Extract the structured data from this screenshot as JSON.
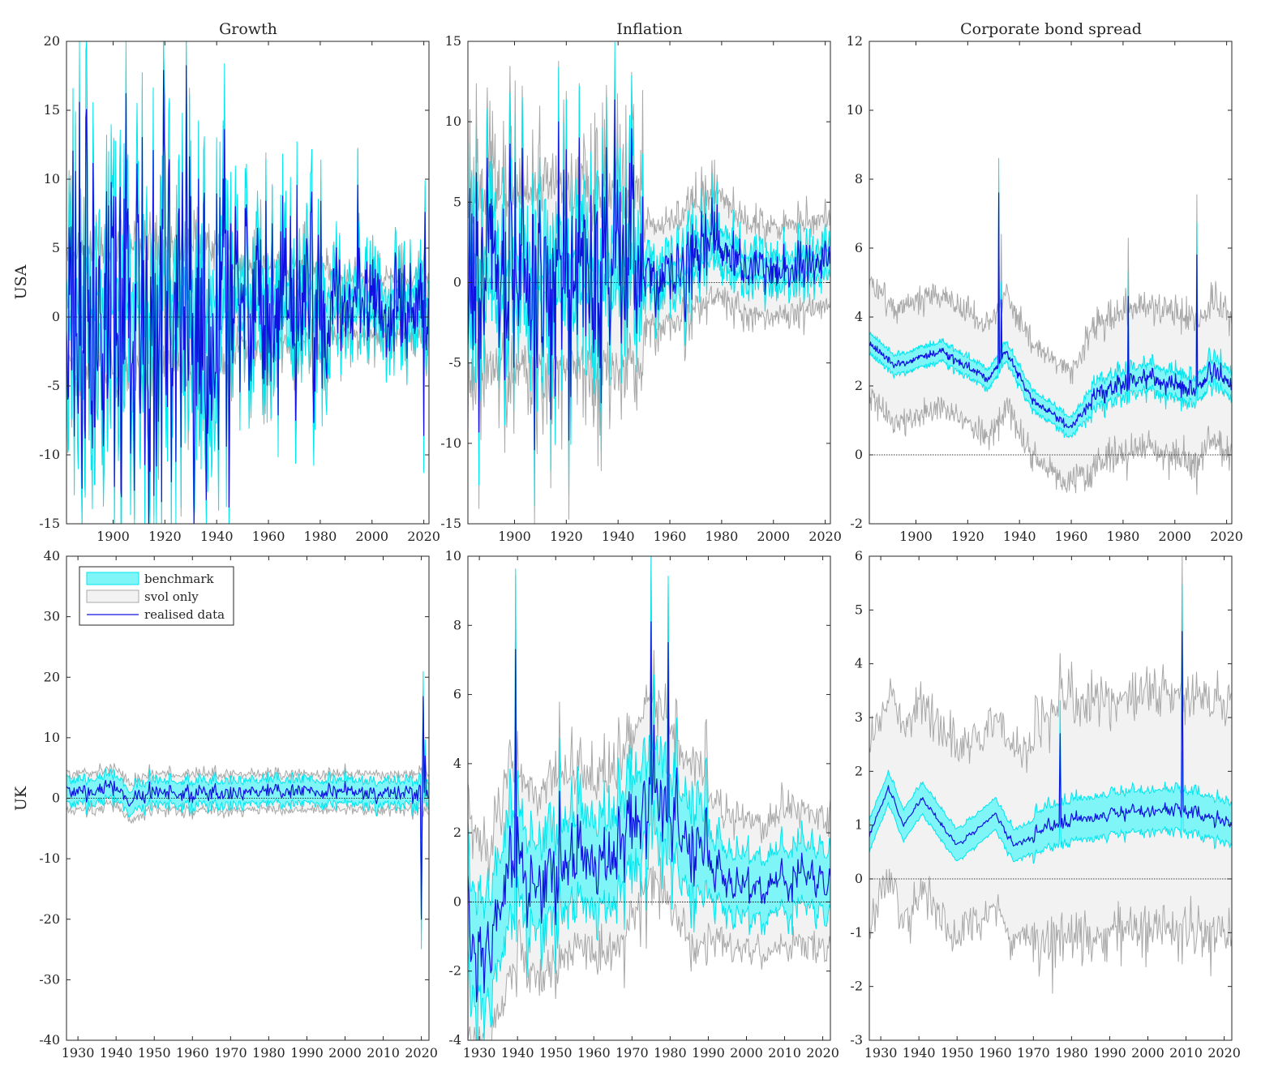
{
  "figure": {
    "column_titles": [
      "Growth",
      "Inflation",
      "Corporate bond spread"
    ],
    "row_labels": [
      "USA",
      "UK"
    ],
    "legend": {
      "items": [
        {
          "label": "benchmark",
          "kind": "band",
          "fill": "#7ff5f7",
          "stroke": "#00e5ee"
        },
        {
          "label": "svol only",
          "kind": "band",
          "fill": "#f2f2f2",
          "stroke": "#a8a8a8"
        },
        {
          "label": "realised data",
          "kind": "line",
          "stroke": "#1010e0"
        }
      ]
    },
    "colors": {
      "benchmark_fill": "#7ff5f7",
      "benchmark_edge": "#00e5ee",
      "svol_fill": "#f2f2f2",
      "svol_edge": "#a8a8a8",
      "realised": "#1010e0",
      "zero_line": "#000000",
      "axes": "#262626"
    }
  },
  "chart_data": [
    {
      "id": "usa-growth",
      "type": "line",
      "row": "USA",
      "title": "Growth",
      "xlim": [
        1882,
        2022
      ],
      "ylim": [
        -15,
        20
      ],
      "xticks": [
        1900,
        1920,
        1940,
        1960,
        1980,
        2000,
        2020
      ],
      "yticks": [
        -15,
        -10,
        -5,
        0,
        5,
        10,
        15,
        20
      ],
      "zero_line": true,
      "legend": false,
      "sim": {
        "start": 1882,
        "end": 2022,
        "step": 0.25,
        "mean": 0.8,
        "noise": 2.8,
        "spikes": [
          [
            1892,
            -9.5
          ],
          [
            1907,
            -6
          ],
          [
            1919,
            7.8
          ],
          [
            1921,
            -6.5
          ],
          [
            1931,
            -7.5
          ],
          [
            1933,
            10
          ],
          [
            1934,
            -7
          ],
          [
            1938,
            -7.5
          ],
          [
            1945,
            -7.5
          ],
          [
            2020,
            -8.6
          ],
          [
            2020.5,
            7.6
          ]
        ],
        "regimes": [
          [
            1882,
            1946,
            3.0
          ],
          [
            1946,
            1984,
            1.6
          ],
          [
            1984,
            2022,
            0.8
          ]
        ],
        "bench_w": 1.2,
        "svol_w": 1.7,
        "seed": 11
      }
    },
    {
      "id": "usa-inflation",
      "type": "line",
      "row": "USA",
      "title": "Inflation",
      "xlim": [
        1882,
        2022
      ],
      "ylim": [
        -15,
        15
      ],
      "xticks": [
        1900,
        1920,
        1940,
        1960,
        1980,
        2000,
        2020
      ],
      "yticks": [
        -15,
        -10,
        -5,
        0,
        5,
        10,
        15
      ],
      "zero_line": true,
      "legend": false,
      "sim": {
        "start": 1882,
        "end": 2022,
        "step": 0.25,
        "mean": 0.0,
        "noise": 2.0,
        "spikes": [
          [
            1917,
            10
          ],
          [
            1919,
            7
          ],
          [
            1921,
            -9.8
          ],
          [
            1933,
            -5.3
          ],
          [
            1946,
            7.3
          ]
        ],
        "regimes": [
          [
            1882,
            1950,
            2.2
          ],
          [
            1950,
            1965,
            0.6
          ],
          [
            1965,
            1985,
            0.7
          ],
          [
            1985,
            2022,
            0.4
          ]
        ],
        "trend": [
          [
            1882,
            0
          ],
          [
            1950,
            0.2
          ],
          [
            1965,
            0.8
          ],
          [
            1980,
            2.5
          ],
          [
            1985,
            1.2
          ],
          [
            2000,
            0.6
          ],
          [
            2022,
            1.2
          ]
        ],
        "bench_w": 1.0,
        "svol_w": 2.8,
        "seed": 23
      }
    },
    {
      "id": "usa-spread",
      "type": "line",
      "row": "USA",
      "title": "Corporate bond spread",
      "xlim": [
        1882,
        2022
      ],
      "ylim": [
        -2,
        12
      ],
      "xticks": [
        1900,
        1920,
        1940,
        1960,
        1980,
        2000,
        2020
      ],
      "yticks": [
        -2,
        0,
        2,
        4,
        6,
        8,
        10,
        12
      ],
      "zero_line": true,
      "legend": false,
      "sim": {
        "start": 1882,
        "end": 2022,
        "step": 0.25,
        "mean": 0.0,
        "noise": 0.25,
        "spikes": [
          [
            1932,
            7.6
          ],
          [
            1933,
            4.5
          ],
          [
            1982,
            4.6
          ],
          [
            2008.5,
            5.8
          ]
        ],
        "regimes": [
          [
            1882,
            1965,
            0.3
          ],
          [
            1965,
            2022,
            0.7
          ]
        ],
        "trend": [
          [
            1882,
            3.3
          ],
          [
            1892,
            2.6
          ],
          [
            1910,
            3.0
          ],
          [
            1928,
            2.2
          ],
          [
            1935,
            3.0
          ],
          [
            1945,
            1.6
          ],
          [
            1960,
            0.8
          ],
          [
            1970,
            1.8
          ],
          [
            1990,
            2.3
          ],
          [
            2008,
            1.8
          ],
          [
            2015,
            2.5
          ],
          [
            2022,
            2.0
          ]
        ],
        "bench_w": 0.35,
        "svol_w": 1.9,
        "seed": 37
      }
    },
    {
      "id": "uk-growth",
      "type": "line",
      "row": "UK",
      "title": "",
      "xlim": [
        1927,
        2022
      ],
      "ylim": [
        -40,
        40
      ],
      "xticks": [
        1930,
        1940,
        1950,
        1960,
        1970,
        1980,
        1990,
        2000,
        2010,
        2020
      ],
      "yticks": [
        -40,
        -30,
        -20,
        -10,
        0,
        10,
        20,
        30,
        40
      ],
      "zero_line": true,
      "legend": true,
      "sim": {
        "start": 1927,
        "end": 2022,
        "step": 0.25,
        "mean": 0.5,
        "noise": 0.9,
        "spikes": [
          [
            2020,
            -20
          ],
          [
            2020.5,
            16.8
          ],
          [
            2021,
            7
          ]
        ],
        "regimes": [
          [
            1927,
            2022,
            1.0
          ]
        ],
        "trend": [
          [
            1927,
            0.3
          ],
          [
            1940,
            1.5
          ],
          [
            1944,
            -1.5
          ],
          [
            1948,
            0.5
          ],
          [
            2022,
            0.5
          ]
        ],
        "bench_w": 1.5,
        "svol_w": 2.3,
        "seed": 41
      }
    },
    {
      "id": "uk-inflation",
      "type": "line",
      "row": "UK",
      "title": "",
      "xlim": [
        1927,
        2022
      ],
      "ylim": [
        -4,
        10
      ],
      "xticks": [
        1930,
        1940,
        1950,
        1960,
        1970,
        1980,
        1990,
        2000,
        2010,
        2020
      ],
      "yticks": [
        -4,
        -2,
        0,
        2,
        4,
        6,
        8,
        10
      ],
      "zero_line": true,
      "legend": false,
      "sim": {
        "start": 1927,
        "end": 2022,
        "step": 0.25,
        "mean": 0.0,
        "noise": 0.8,
        "spikes": [
          [
            1939.5,
            7.3
          ],
          [
            1975,
            8.1
          ],
          [
            1979.5,
            7.5
          ],
          [
            1951,
            3.2
          ]
        ],
        "regimes": [
          [
            1927,
            1940,
            1.4
          ],
          [
            1940,
            1990,
            1.0
          ],
          [
            1990,
            2022,
            0.4
          ]
        ],
        "trend": [
          [
            1927,
            -0.5
          ],
          [
            1932,
            -1.5
          ],
          [
            1940,
            1.5
          ],
          [
            1945,
            0.4
          ],
          [
            1955,
            1.2
          ],
          [
            1965,
            1.0
          ],
          [
            1975,
            3.5
          ],
          [
            1985,
            1.5
          ],
          [
            1995,
            0.6
          ],
          [
            2005,
            0.4
          ],
          [
            2012,
            0.8
          ],
          [
            2022,
            0.6
          ]
        ],
        "bench_w": 1.0,
        "svol_w": 2.0,
        "seed": 53
      }
    },
    {
      "id": "uk-spread",
      "type": "line",
      "row": "UK",
      "title": "",
      "xlim": [
        1927,
        2022
      ],
      "ylim": [
        -3,
        6
      ],
      "xticks": [
        1930,
        1940,
        1950,
        1960,
        1970,
        1980,
        1990,
        2000,
        2010,
        2020
      ],
      "yticks": [
        -3,
        -2,
        -1,
        0,
        1,
        2,
        3,
        4,
        5,
        6
      ],
      "zero_line": true,
      "legend": false,
      "sim": {
        "start": 1927,
        "end": 2022,
        "step": 0.25,
        "mean": 0.0,
        "noise": 0.15,
        "spikes": [
          [
            2009,
            4.6
          ],
          [
            1977,
            2.7
          ]
        ],
        "regimes": [
          [
            1927,
            1970,
            0.2
          ],
          [
            1970,
            2022,
            0.55
          ]
        ],
        "trend": [
          [
            1927,
            0.8
          ],
          [
            1932,
            1.7
          ],
          [
            1936,
            1.0
          ],
          [
            1941,
            1.5
          ],
          [
            1950,
            0.6
          ],
          [
            1960,
            1.2
          ],
          [
            1965,
            0.6
          ],
          [
            1975,
            1.0
          ],
          [
            1990,
            1.2
          ],
          [
            2005,
            1.3
          ],
          [
            2015,
            1.2
          ],
          [
            2022,
            1.0
          ]
        ],
        "bench_w": 0.4,
        "svol_w": 2.2,
        "seed": 67
      }
    }
  ]
}
